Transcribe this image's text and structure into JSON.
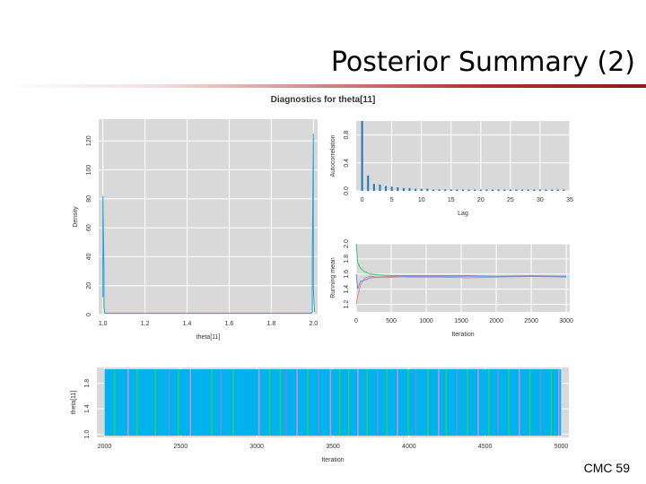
{
  "slide": {
    "title": "Posterior Summary (2)",
    "footer": "CMC 59"
  },
  "chart_data": [
    {
      "id": "density",
      "type": "line",
      "title": "Diagnostics for theta[11]",
      "xlabel": "theta[11]",
      "ylabel": "Density",
      "xlim": [
        0.98,
        2.02
      ],
      "ylim": [
        0,
        135
      ],
      "xticks": [
        "1.0",
        "1.2",
        "1.4",
        "1.6",
        "1.8",
        "2.0"
      ],
      "yticks": [
        "0",
        "20",
        "40",
        "60",
        "80",
        "100",
        "120"
      ],
      "grid": true,
      "series": [
        {
          "color": "#1fa3d9",
          "x": [
            1.0,
            1.0,
            1.0,
            1.005,
            1.005,
            1.01,
            1.02,
            1.99,
            1.995,
            1.995,
            2.0,
            2.0,
            2.0,
            2.005
          ],
          "y": [
            12,
            30,
            82,
            30,
            5,
            1,
            1,
            1,
            2,
            40,
            125,
            105,
            18,
            2
          ]
        }
      ]
    },
    {
      "id": "autocorrelation",
      "type": "bar",
      "xlabel": "Lag",
      "ylabel": "Autocorrelation",
      "xlim": [
        -1,
        35
      ],
      "ylim": [
        0,
        1
      ],
      "xticks": [
        "0",
        "5",
        "10",
        "15",
        "20",
        "25",
        "30",
        "35"
      ],
      "yticks": [
        "0.0",
        "0.4",
        "0.8"
      ],
      "grid": true,
      "series": [
        {
          "color": "#1f77b4",
          "x": [
            0,
            1,
            2,
            3,
            4,
            5,
            6,
            7,
            8,
            9,
            10,
            11,
            12,
            13,
            14,
            15,
            16,
            17,
            18,
            19,
            20,
            21,
            22,
            23,
            24,
            25,
            26,
            27,
            28,
            29,
            30,
            31,
            32,
            33,
            34
          ],
          "y": [
            1.0,
            0.22,
            0.1,
            0.09,
            0.07,
            0.06,
            0.05,
            0.04,
            0.04,
            0.03,
            0.03,
            0.03,
            0.02,
            0.02,
            0.02,
            0.02,
            0.02,
            0.01,
            0.01,
            0.01,
            0.01,
            0.01,
            0.01,
            0.01,
            0.01,
            0.01,
            0.01,
            0.0,
            0.0,
            0.0,
            0.0,
            0.0,
            0.0,
            0.0,
            0.0
          ]
        }
      ]
    },
    {
      "id": "running-mean",
      "type": "line",
      "xlabel": "Iteration",
      "ylabel": "Running mean",
      "xlim": [
        0,
        3050
      ],
      "ylim": [
        1.1,
        2.0
      ],
      "xticks": [
        "0",
        "500",
        "1000",
        "1500",
        "2000",
        "2500",
        "3000"
      ],
      "yticks": [
        "1.2",
        "1.4",
        "1.6",
        "1.8",
        "2.0"
      ],
      "grid": true,
      "series": [
        {
          "color": "#e8838a",
          "x": [
            1,
            20,
            60,
            120,
            200,
            300,
            500,
            800,
            1200,
            1600,
            2000,
            2500,
            3000
          ],
          "y": [
            1.2,
            1.3,
            1.45,
            1.55,
            1.57,
            1.56,
            1.57,
            1.56,
            1.56,
            1.55,
            1.56,
            1.57,
            1.56
          ]
        },
        {
          "color": "#2ecc71",
          "x": [
            1,
            20,
            60,
            120,
            200,
            300,
            500,
            800,
            1200,
            1600,
            2000,
            2500,
            3000
          ],
          "y": [
            2.0,
            1.75,
            1.68,
            1.63,
            1.6,
            1.59,
            1.58,
            1.58,
            1.58,
            1.58,
            1.57,
            1.58,
            1.57
          ]
        },
        {
          "color": "#6a8fdd",
          "x": [
            1,
            20,
            60,
            120,
            200,
            300,
            500,
            800,
            1200,
            1600,
            2000,
            2500,
            3000
          ],
          "y": [
            1.6,
            1.4,
            1.5,
            1.52,
            1.55,
            1.56,
            1.56,
            1.57,
            1.57,
            1.57,
            1.57,
            1.57,
            1.57
          ]
        }
      ]
    },
    {
      "id": "trace",
      "type": "line",
      "xlabel": "Iteration",
      "ylabel": "theta[11]",
      "xlim": [
        1950,
        5050
      ],
      "ylim": [
        0.95,
        2.05
      ],
      "xticks": [
        "2000",
        "2500",
        "3000",
        "3500",
        "4000",
        "4500",
        "5000"
      ],
      "yticks": [
        "1.0",
        "1.4",
        "1.8"
      ],
      "grid": true,
      "series": [
        {
          "name": "",
          "color": "#00b2ee",
          "baseline": 2.0
        }
      ],
      "excursions": [
        {
          "x": 2060,
          "color": "#2ecc71"
        },
        {
          "x": 2150,
          "color": "#c792d8"
        },
        {
          "x": 2210,
          "color": "#2ecc71"
        },
        {
          "x": 2330,
          "color": "#2ecc71"
        },
        {
          "x": 2420,
          "color": "#6a8fdd"
        },
        {
          "x": 2480,
          "color": "#2ecc71"
        },
        {
          "x": 2560,
          "color": "#c792d8"
        },
        {
          "x": 2700,
          "color": "#2ecc71"
        },
        {
          "x": 2760,
          "color": "#6a8fdd"
        },
        {
          "x": 2840,
          "color": "#2ecc71"
        },
        {
          "x": 3010,
          "color": "#c792d8"
        },
        {
          "x": 3080,
          "color": "#2ecc71"
        },
        {
          "x": 3150,
          "color": "#2ecc71"
        },
        {
          "x": 3190,
          "color": "#6a8fdd"
        },
        {
          "x": 3260,
          "color": "#c792d8"
        },
        {
          "x": 3330,
          "color": "#2ecc71"
        },
        {
          "x": 3400,
          "color": "#6a8fdd"
        },
        {
          "x": 3480,
          "color": "#c792d8"
        },
        {
          "x": 3540,
          "color": "#2ecc71"
        },
        {
          "x": 3600,
          "color": "#2ecc71"
        },
        {
          "x": 3660,
          "color": "#c792d8"
        },
        {
          "x": 3720,
          "color": "#2ecc71"
        },
        {
          "x": 3790,
          "color": "#6a8fdd"
        },
        {
          "x": 3850,
          "color": "#2ecc71"
        },
        {
          "x": 3920,
          "color": "#c792d8"
        },
        {
          "x": 3990,
          "color": "#2ecc71"
        },
        {
          "x": 4040,
          "color": "#6a8fdd"
        },
        {
          "x": 4120,
          "color": "#2ecc71"
        },
        {
          "x": 4190,
          "color": "#c792d8"
        },
        {
          "x": 4240,
          "color": "#2ecc71"
        },
        {
          "x": 4310,
          "color": "#6a8fdd"
        },
        {
          "x": 4380,
          "color": "#2ecc71"
        },
        {
          "x": 4450,
          "color": "#c792d8"
        },
        {
          "x": 4520,
          "color": "#2ecc71"
        },
        {
          "x": 4580,
          "color": "#6a8fdd"
        },
        {
          "x": 4650,
          "color": "#2ecc71"
        },
        {
          "x": 4720,
          "color": "#c792d8"
        },
        {
          "x": 4790,
          "color": "#2ecc71"
        },
        {
          "x": 4860,
          "color": "#6a8fdd"
        },
        {
          "x": 4930,
          "color": "#2ecc71"
        },
        {
          "x": 4980,
          "color": "#c792d8"
        }
      ]
    }
  ]
}
